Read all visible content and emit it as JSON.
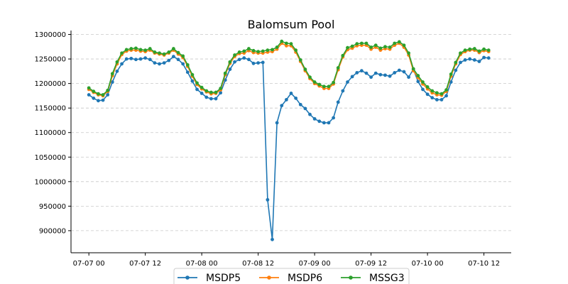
{
  "chart_data": {
    "type": "line",
    "title": "Balomsum Pool",
    "xlabel": "",
    "ylabel": "",
    "x_tick_labels": [
      "07-07 00",
      "07-07 12",
      "07-08 00",
      "07-08 12",
      "07-09 00",
      "07-09 12",
      "07-10 00",
      "07-10 12"
    ],
    "x_ticks_hours": [
      0,
      12,
      24,
      36,
      48,
      60,
      72,
      84
    ],
    "x_interval_hours": 1,
    "xlim_hours": [
      -3.8,
      89.8
    ],
    "ylim": [
      855000,
      1308000
    ],
    "y_ticks": [
      900000,
      950000,
      1000000,
      1050000,
      1100000,
      1150000,
      1200000,
      1250000,
      1300000
    ],
    "y_tick_labels": [
      "900000",
      "950000",
      "1000000",
      "1050000",
      "1100000",
      "1150000",
      "1200000",
      "1250000",
      "1300000"
    ],
    "grid": "horizontal dashed",
    "legend": "bottom-center",
    "colors": {
      "MSDP5": "#1f77b4",
      "MSDP6": "#ff7f0e",
      "MSSG3": "#2ca02c"
    },
    "series": [
      {
        "name": "MSDP5",
        "values": [
          1177000,
          1170000,
          1165000,
          1166000,
          1177000,
          1203000,
          1225000,
          1240000,
          1250000,
          1251000,
          1249000,
          1250000,
          1252000,
          1249000,
          1242000,
          1240000,
          1242000,
          1247000,
          1255000,
          1249000,
          1240000,
          1223000,
          1205000,
          1188000,
          1180000,
          1172000,
          1169000,
          1169000,
          1181000,
          1207000,
          1229000,
          1244000,
          1249000,
          1252000,
          1249000,
          1241000,
          1242000,
          1243000,
          963000,
          882000,
          1120000,
          1155000,
          1167000,
          1180000,
          1170000,
          1157000,
          1149000,
          1137000,
          1128000,
          1123000,
          1120000,
          1120000,
          1130000,
          1162000,
          1185000,
          1203000,
          1214000,
          1222000,
          1226000,
          1221000,
          1213000,
          1221000,
          1218000,
          1217000,
          1215000,
          1222000,
          1227000,
          1224000,
          1213000,
          1229000,
          1204000,
          1188000,
          1178000,
          1171000,
          1167000,
          1167000,
          1175000,
          1203000,
          1227000,
          1243000,
          1248000,
          1250000,
          1248000,
          1245000,
          1253000,
          1252000
        ]
      },
      {
        "name": "MSDP6",
        "values": [
          1188000,
          1182000,
          1177000,
          1175000,
          1184000,
          1216000,
          1240000,
          1259000,
          1266000,
          1268000,
          1268000,
          1266000,
          1265000,
          1268000,
          1262000,
          1260000,
          1258000,
          1262000,
          1268000,
          1260000,
          1253000,
          1235000,
          1215000,
          1198000,
          1189000,
          1183000,
          1179000,
          1180000,
          1187000,
          1218000,
          1241000,
          1255000,
          1261000,
          1262000,
          1267000,
          1263000,
          1262000,
          1262000,
          1264000,
          1265000,
          1270000,
          1282000,
          1277000,
          1277000,
          1264000,
          1245000,
          1226000,
          1210000,
          1200000,
          1195000,
          1190000,
          1190000,
          1199000,
          1228000,
          1254000,
          1269000,
          1272000,
          1277000,
          1278000,
          1278000,
          1270000,
          1274000,
          1268000,
          1271000,
          1270000,
          1278000,
          1282000,
          1274000,
          1258000,
          1226000,
          1212000,
          1199000,
          1189000,
          1181000,
          1177000,
          1176000,
          1184000,
          1215000,
          1240000,
          1259000,
          1265000,
          1268000,
          1268000,
          1263000,
          1267000,
          1265000
        ]
      },
      {
        "name": "MSSG3",
        "values": [
          1191000,
          1184000,
          1179000,
          1177000,
          1186000,
          1220000,
          1244000,
          1262000,
          1269000,
          1271000,
          1272000,
          1269000,
          1268000,
          1271000,
          1264000,
          1262000,
          1260000,
          1264000,
          1271000,
          1263000,
          1256000,
          1238000,
          1218000,
          1201000,
          1192000,
          1185000,
          1182000,
          1182000,
          1190000,
          1221000,
          1244000,
          1258000,
          1264000,
          1266000,
          1271000,
          1267000,
          1265000,
          1266000,
          1268000,
          1269000,
          1274000,
          1286000,
          1282000,
          1281000,
          1268000,
          1248000,
          1229000,
          1213000,
          1203000,
          1198000,
          1194000,
          1194000,
          1202000,
          1232000,
          1257000,
          1273000,
          1276000,
          1281000,
          1282000,
          1282000,
          1274000,
          1278000,
          1272000,
          1275000,
          1274000,
          1282000,
          1285000,
          1278000,
          1262000,
          1230000,
          1216000,
          1203000,
          1193000,
          1185000,
          1181000,
          1179000,
          1187000,
          1219000,
          1243000,
          1262000,
          1268000,
          1270000,
          1271000,
          1266000,
          1270000,
          1268000
        ]
      }
    ]
  }
}
